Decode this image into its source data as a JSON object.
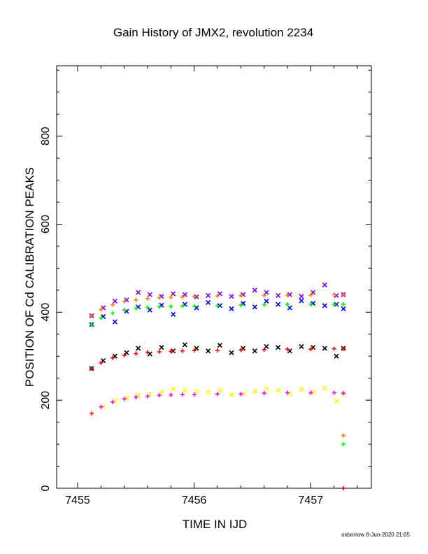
{
  "chart_data": {
    "type": "scatter",
    "title": "Gain History of JMX2, revolution 2234",
    "xlabel": "TIME IN IJD",
    "ylabel": "POSITION OF Cd CALIBRATION PEAKS",
    "xlim": [
      7454.82,
      7457.52
    ],
    "ylim": [
      0,
      960
    ],
    "x_ticks": [
      7455,
      7456,
      7457
    ],
    "y_ticks": [
      0,
      200,
      400,
      600,
      800
    ],
    "grid": false,
    "footer": "oxborrow  8-Jun-2020 21:05",
    "series": [
      {
        "marker": "x",
        "color": "#7f00ff",
        "x": [
          7455.12,
          7455.22,
          7455.32,
          7455.42,
          7455.52,
          7455.62,
          7455.72,
          7455.82,
          7455.92,
          7456.02,
          7456.12,
          7456.22,
          7456.32,
          7456.42,
          7456.52,
          7456.62,
          7456.72,
          7456.82,
          7456.92,
          7457.02,
          7457.12,
          7457.22,
          7457.28
        ],
        "y": [
          392,
          410,
          425,
          428,
          445,
          440,
          436,
          442,
          440,
          435,
          438,
          442,
          436,
          440,
          450,
          445,
          438,
          440,
          436,
          445,
          462,
          438,
          440
        ]
      },
      {
        "marker": "x",
        "color": "#0000ff",
        "x": [
          7455.12,
          7455.22,
          7455.32,
          7455.42,
          7455.52,
          7455.62,
          7455.72,
          7455.82,
          7455.92,
          7456.02,
          7456.12,
          7456.22,
          7456.32,
          7456.42,
          7456.52,
          7456.62,
          7456.72,
          7456.82,
          7456.92,
          7457.02,
          7457.12,
          7457.22,
          7457.28
        ],
        "y": [
          372,
          390,
          378,
          402,
          412,
          405,
          416,
          395,
          418,
          410,
          422,
          415,
          408,
          420,
          412,
          425,
          418,
          410,
          426,
          420,
          415,
          418,
          408
        ]
      },
      {
        "marker": "+",
        "color": "#ff7f00",
        "x": [
          7455.12,
          7455.2,
          7455.3,
          7455.4,
          7455.5,
          7455.6,
          7455.7,
          7455.8,
          7455.9,
          7456.0,
          7456.2,
          7456.4,
          7456.6,
          7456.8,
          7457.0,
          7457.2,
          7457.28
        ],
        "y": [
          392,
          406,
          417,
          424,
          428,
          431,
          433,
          434,
          435,
          436,
          437,
          438,
          438,
          439,
          439,
          440,
          440
        ]
      },
      {
        "marker": "+",
        "color": "#00ff00",
        "x": [
          7455.12,
          7455.2,
          7455.3,
          7455.4,
          7455.5,
          7455.6,
          7455.7,
          7455.8,
          7455.9,
          7456.0,
          7456.2,
          7456.4,
          7456.6,
          7456.8,
          7457.0,
          7457.2,
          7457.28
        ],
        "y": [
          372,
          387,
          398,
          405,
          409,
          411,
          412,
          413,
          414,
          414,
          415,
          416,
          417,
          418,
          418,
          418,
          418
        ]
      },
      {
        "marker": "x",
        "color": "#000000",
        "x": [
          7455.12,
          7455.22,
          7455.32,
          7455.42,
          7455.52,
          7455.62,
          7455.72,
          7455.82,
          7455.92,
          7456.02,
          7456.12,
          7456.22,
          7456.32,
          7456.42,
          7456.52,
          7456.62,
          7456.72,
          7456.82,
          7456.92,
          7457.02,
          7457.12,
          7457.22,
          7457.28
        ],
        "y": [
          272,
          290,
          300,
          308,
          318,
          305,
          320,
          312,
          326,
          318,
          312,
          325,
          308,
          318,
          312,
          322,
          320,
          312,
          322,
          320,
          318,
          300,
          318
        ]
      },
      {
        "marker": "+",
        "color": "#ff0000",
        "x": [
          7455.12,
          7455.2,
          7455.3,
          7455.4,
          7455.5,
          7455.6,
          7455.7,
          7455.8,
          7455.9,
          7456.0,
          7456.2,
          7456.4,
          7456.6,
          7456.8,
          7457.0,
          7457.2,
          7457.28
        ],
        "y": [
          272,
          285,
          296,
          302,
          306,
          309,
          310,
          311,
          312,
          313,
          313,
          314,
          315,
          316,
          316,
          317,
          317
        ]
      },
      {
        "marker": "x",
        "color": "#ffff00",
        "x": [
          7455.12,
          7455.22,
          7455.32,
          7455.42,
          7455.52,
          7455.62,
          7455.72,
          7455.82,
          7455.92,
          7456.02,
          7456.12,
          7456.22,
          7456.32,
          7456.42,
          7456.52,
          7456.62,
          7456.72,
          7456.82,
          7456.92,
          7457.02,
          7457.12,
          7457.22,
          7457.28
        ],
        "y": [
          168,
          185,
          198,
          205,
          210,
          214,
          218,
          225,
          222,
          220,
          218,
          222,
          212,
          215,
          220,
          226,
          222,
          215,
          225,
          218,
          228,
          198,
          215
        ]
      },
      {
        "marker": "+",
        "color": "#ff00ff",
        "x": [
          7455.12,
          7455.2,
          7455.3,
          7455.4,
          7455.5,
          7455.6,
          7455.7,
          7455.8,
          7455.9,
          7456.0,
          7456.2,
          7456.4,
          7456.6,
          7456.8,
          7457.0,
          7457.2,
          7457.28
        ],
        "y": [
          170,
          185,
          196,
          203,
          207,
          209,
          211,
          212,
          213,
          213,
          214,
          214,
          216,
          217,
          217,
          217,
          216
        ]
      },
      {
        "marker": "+",
        "color": "#ff7f00",
        "x": [
          7457.28
        ],
        "y": [
          120
        ]
      },
      {
        "marker": "+",
        "color": "#00ff00",
        "x": [
          7457.28
        ],
        "y": [
          100
        ]
      },
      {
        "marker": "+",
        "color": "#ff0000",
        "x": [
          7457.28
        ],
        "y": [
          0
        ]
      }
    ]
  }
}
